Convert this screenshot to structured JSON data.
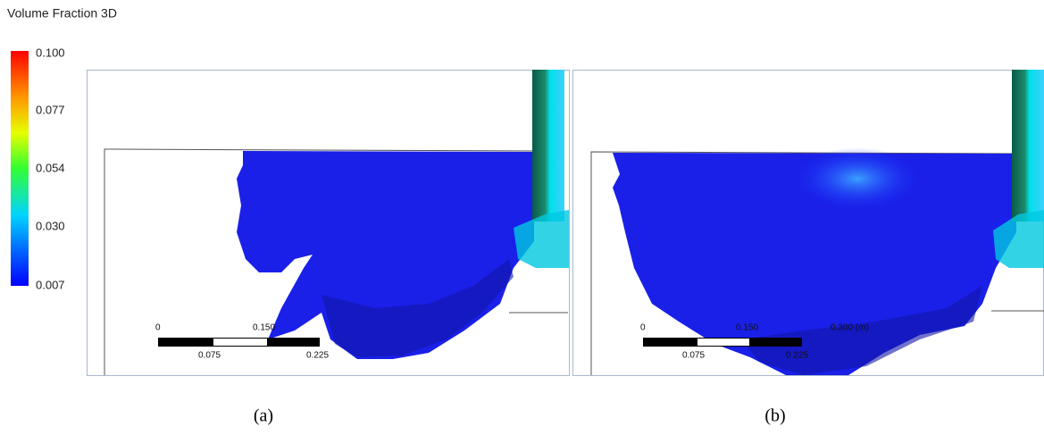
{
  "legend": {
    "title": "Volume Fraction 3D",
    "ticks": [
      "0.100",
      "0.077",
      "0.054",
      "0.030",
      "0.007"
    ]
  },
  "panels": [
    {
      "caption": "(a)",
      "scale_labels": [
        "0",
        "0.150",
        "0.075",
        "0.225"
      ]
    },
    {
      "caption": "(b)",
      "scale_labels": [
        "0",
        "0.150",
        "0.300 (m)",
        "0.075",
        "0.225"
      ]
    }
  ]
}
